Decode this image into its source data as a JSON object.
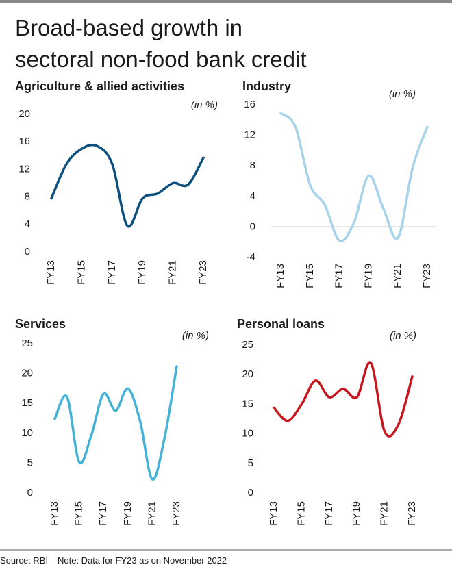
{
  "title": [
    "Broad-based growth in",
    "sectoral non-food bank credit"
  ],
  "source": "Source: RBI",
  "note": "Note: Data for FY23 as on November 2022",
  "chart_data": [
    {
      "type": "line",
      "title": "Agriculture & allied activities",
      "unit": "(in %)",
      "categories": [
        "FY13",
        null,
        "FY15",
        null,
        "FY17",
        null,
        "FY19",
        null,
        "FY21",
        null,
        "FY23"
      ],
      "values": [
        7.8,
        12.8,
        15,
        15.4,
        12.8,
        3.8,
        7.8,
        8.5,
        10,
        9.8,
        13.7
      ],
      "color": "#0b4f7c",
      "ylim": [
        0,
        20
      ],
      "yticks": [
        0,
        4,
        8,
        12,
        16,
        20
      ]
    },
    {
      "type": "line",
      "title": "Industry",
      "unit": "(in %)",
      "categories": [
        "FY13",
        null,
        "FY15",
        null,
        "FY17",
        null,
        "FY19",
        null,
        "FY21",
        null,
        "FY23"
      ],
      "values": [
        14.9,
        13.1,
        5.5,
        2.9,
        -1.8,
        0.6,
        6.7,
        2.4,
        -1.4,
        7.8,
        13.1
      ],
      "color": "#a7d3ea",
      "ylim": [
        -4,
        16
      ],
      "yticks": [
        -4,
        0,
        4,
        8,
        12,
        16
      ]
    },
    {
      "type": "line",
      "title": "Services",
      "unit": "(in %)",
      "categories": [
        "FY13",
        null,
        "FY15",
        null,
        "FY17",
        null,
        "FY19",
        null,
        "FY21",
        null,
        "FY23"
      ],
      "values": [
        12.4,
        16.1,
        5.2,
        9.7,
        16.6,
        13.8,
        17.5,
        12,
        2.3,
        9.2,
        21.2
      ],
      "color": "#44b2d6",
      "ylim": [
        0,
        25
      ],
      "yticks": [
        0,
        5,
        10,
        15,
        20,
        25
      ]
    },
    {
      "type": "line",
      "title": "Personal loans",
      "unit": "(in %)",
      "categories": [
        "FY13",
        null,
        "FY15",
        null,
        "FY17",
        null,
        "FY19",
        null,
        "FY21",
        null,
        "FY23"
      ],
      "values": [
        14.4,
        12.2,
        15,
        19,
        16.2,
        17.6,
        16.2,
        22,
        10.4,
        11.6,
        19.7
      ],
      "color": "#c8161e",
      "ylim": [
        0,
        25
      ],
      "yticks": [
        0,
        5,
        10,
        15,
        20,
        25
      ]
    }
  ]
}
